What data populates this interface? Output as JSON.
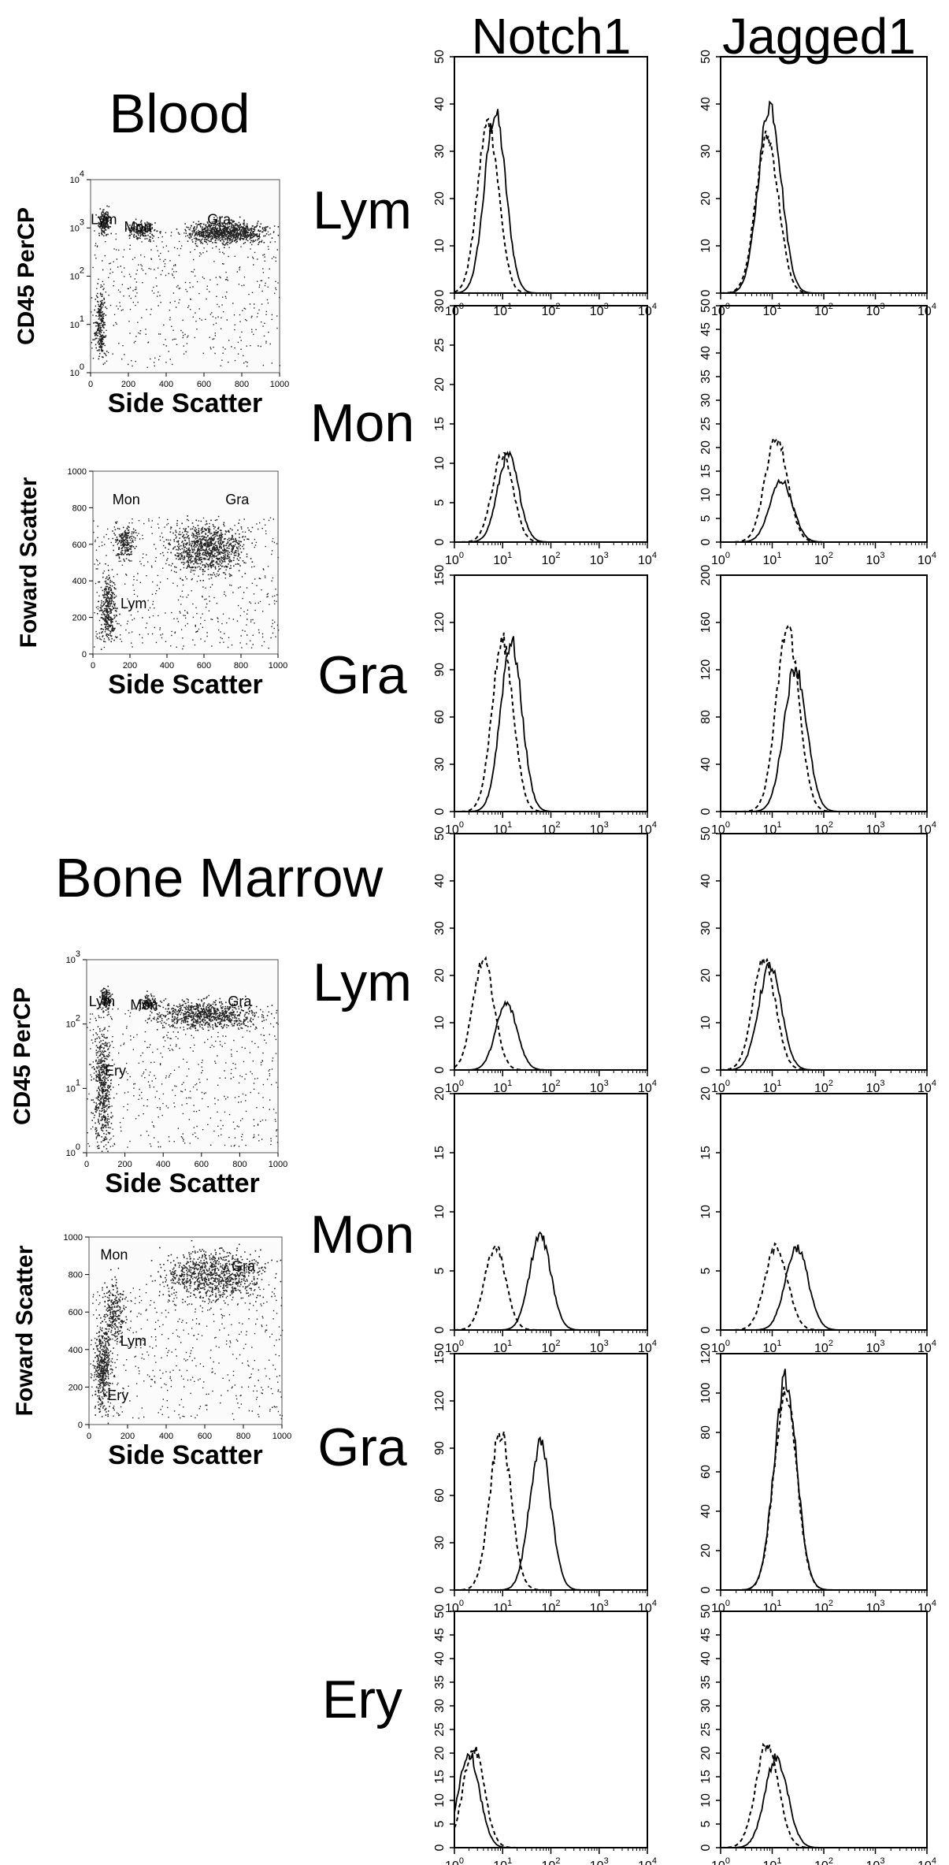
{
  "figure": {
    "column_headers": [
      "Notch1",
      "Jagged1"
    ],
    "sections": [
      {
        "id": "blood",
        "title": "Blood",
        "scatter_plots": [
          {
            "id": "blood-cd45",
            "ylabel": "CD45 PerCP",
            "xlabel": "Side Scatter",
            "y_axis": "log",
            "xticks": [
              "0",
              "200",
              "400",
              "600",
              "800",
              "1000"
            ],
            "yticks": [
              "10^0",
              "10^1",
              "10^2",
              "10^3",
              "10^4"
            ],
            "gates": [
              "Lym",
              "Mon",
              "Gra"
            ]
          },
          {
            "id": "blood-fsc",
            "ylabel": "Foward Scatter",
            "xlabel": "Side Scatter",
            "y_axis": "linear",
            "xticks": [
              "0",
              "200",
              "400",
              "600",
              "800",
              "1000"
            ],
            "yticks": [
              "0",
              "200",
              "400",
              "600",
              "800",
              "1000"
            ],
            "gates": [
              "Mon",
              "Gra",
              "Lym"
            ]
          }
        ]
      },
      {
        "id": "bone-marrow",
        "title": "Bone Marrow",
        "scatter_plots": [
          {
            "id": "bm-cd45",
            "ylabel": "CD45 PerCP",
            "xlabel": "Side Scatter",
            "y_axis": "log",
            "xticks": [
              "0",
              "200",
              "400",
              "600",
              "800",
              "1000"
            ],
            "yticks": [
              "10^0",
              "10^1",
              "10^2",
              "10^3"
            ],
            "gates": [
              "Lym",
              "Mon",
              "Gra",
              "Ery"
            ]
          },
          {
            "id": "bm-fsc",
            "ylabel": "Foward Scatter",
            "xlabel": "Side Scatter",
            "y_axis": "linear",
            "xticks": [
              "0",
              "200",
              "400",
              "600",
              "800",
              "1000"
            ],
            "yticks": [
              "0",
              "200",
              "400",
              "600",
              "800",
              "1000"
            ],
            "gates": [
              "Mon",
              "Gra",
              "Lym",
              "Ery"
            ]
          }
        ]
      }
    ],
    "histogram_x_ticks": [
      "10^0",
      "10^1",
      "10^2",
      "10^3",
      "10^4"
    ]
  },
  "chart_data": [
    {
      "type": "area",
      "section": "Blood",
      "population": "Lym",
      "marker": "Notch1",
      "x_scale": "log",
      "xlim": [
        1,
        10000
      ],
      "ylim": [
        0,
        50
      ],
      "yticks": [
        0,
        10,
        20,
        30,
        40,
        50
      ],
      "series": [
        {
          "line": "solid",
          "peak_x": 7,
          "peak_y": 38
        },
        {
          "line": "dashed",
          "peak_x": 5,
          "peak_y": 36
        }
      ]
    },
    {
      "type": "area",
      "section": "Blood",
      "population": "Lym",
      "marker": "Jagged1",
      "x_scale": "log",
      "xlim": [
        1,
        10000
      ],
      "ylim": [
        0,
        50
      ],
      "yticks": [
        0,
        10,
        20,
        30,
        40,
        50
      ],
      "series": [
        {
          "line": "solid",
          "peak_x": 9,
          "peak_y": 40
        },
        {
          "line": "dashed",
          "peak_x": 8,
          "peak_y": 33
        }
      ]
    },
    {
      "type": "area",
      "section": "Blood",
      "population": "Mon",
      "marker": "Notch1",
      "x_scale": "log",
      "xlim": [
        1,
        10000
      ],
      "ylim": [
        0,
        30
      ],
      "yticks": [
        0,
        5,
        10,
        15,
        20,
        25,
        30
      ],
      "series": [
        {
          "line": "solid",
          "peak_x": 13,
          "peak_y": 11
        },
        {
          "line": "dashed",
          "peak_x": 10,
          "peak_y": 11
        }
      ]
    },
    {
      "type": "area",
      "section": "Blood",
      "population": "Mon",
      "marker": "Jagged1",
      "x_scale": "log",
      "xlim": [
        1,
        10000
      ],
      "ylim": [
        0,
        50
      ],
      "yticks": [
        0,
        5,
        10,
        15,
        20,
        25,
        30,
        35,
        40,
        45,
        50
      ],
      "series": [
        {
          "line": "solid",
          "peak_x": 15,
          "peak_y": 13
        },
        {
          "line": "dashed",
          "peak_x": 12,
          "peak_y": 22
        }
      ]
    },
    {
      "type": "area",
      "section": "Blood",
      "population": "Gra",
      "marker": "Notch1",
      "x_scale": "log",
      "xlim": [
        1,
        10000
      ],
      "ylim": [
        0,
        150
      ],
      "yticks": [
        0,
        30,
        60,
        90,
        120,
        150
      ],
      "series": [
        {
          "line": "solid",
          "peak_x": 15,
          "peak_y": 108
        },
        {
          "line": "dashed",
          "peak_x": 10,
          "peak_y": 108
        }
      ]
    },
    {
      "type": "area",
      "section": "Blood",
      "population": "Gra",
      "marker": "Jagged1",
      "x_scale": "log",
      "xlim": [
        1,
        10000
      ],
      "ylim": [
        0,
        200
      ],
      "yticks": [
        0,
        40,
        80,
        120,
        160,
        200
      ],
      "series": [
        {
          "line": "solid",
          "peak_x": 28,
          "peak_y": 122
        },
        {
          "line": "dashed",
          "peak_x": 20,
          "peak_y": 155
        }
      ]
    },
    {
      "type": "area",
      "section": "Bone Marrow",
      "population": "Lym",
      "marker": "Notch1",
      "x_scale": "log",
      "xlim": [
        1,
        10000
      ],
      "ylim": [
        0,
        50
      ],
      "yticks": [
        0,
        10,
        20,
        30,
        40,
        50
      ],
      "series": [
        {
          "line": "solid",
          "peak_x": 12,
          "peak_y": 14
        },
        {
          "line": "dashed",
          "peak_x": 4,
          "peak_y": 23
        }
      ]
    },
    {
      "type": "area",
      "section": "Bone Marrow",
      "population": "Lym",
      "marker": "Jagged1",
      "x_scale": "log",
      "xlim": [
        1,
        10000
      ],
      "ylim": [
        0,
        50
      ],
      "yticks": [
        0,
        10,
        20,
        30,
        40,
        50
      ],
      "series": [
        {
          "line": "solid",
          "peak_x": 9,
          "peak_y": 22
        },
        {
          "line": "dashed",
          "peak_x": 7,
          "peak_y": 23
        }
      ]
    },
    {
      "type": "area",
      "section": "Bone Marrow",
      "population": "Mon",
      "marker": "Notch1",
      "x_scale": "log",
      "xlim": [
        1,
        10000
      ],
      "ylim": [
        0,
        20
      ],
      "yticks": [
        0,
        5,
        10,
        15,
        20
      ],
      "series": [
        {
          "line": "solid",
          "peak_x": 60,
          "peak_y": 8
        },
        {
          "line": "dashed",
          "peak_x": 7,
          "peak_y": 7
        }
      ]
    },
    {
      "type": "area",
      "section": "Bone Marrow",
      "population": "Mon",
      "marker": "Jagged1",
      "x_scale": "log",
      "xlim": [
        1,
        10000
      ],
      "ylim": [
        0,
        20
      ],
      "yticks": [
        0,
        5,
        10,
        15,
        20
      ],
      "series": [
        {
          "line": "solid",
          "peak_x": 30,
          "peak_y": 7
        },
        {
          "line": "dashed",
          "peak_x": 12,
          "peak_y": 7
        }
      ]
    },
    {
      "type": "area",
      "section": "Bone Marrow",
      "population": "Gra",
      "marker": "Notch1",
      "x_scale": "log",
      "xlim": [
        1,
        10000
      ],
      "ylim": [
        0,
        150
      ],
      "yticks": [
        0,
        30,
        60,
        90,
        120,
        150
      ],
      "series": [
        {
          "line": "solid",
          "peak_x": 60,
          "peak_y": 92
        },
        {
          "line": "dashed",
          "peak_x": 9,
          "peak_y": 100
        }
      ]
    },
    {
      "type": "area",
      "section": "Bone Marrow",
      "population": "Gra",
      "marker": "Jagged1",
      "x_scale": "log",
      "xlim": [
        1,
        10000
      ],
      "ylim": [
        0,
        120
      ],
      "yticks": [
        0,
        20,
        40,
        60,
        80,
        100,
        120
      ],
      "series": [
        {
          "line": "solid",
          "peak_x": 18,
          "peak_y": 106
        },
        {
          "line": "dashed",
          "peak_x": 18,
          "peak_y": 100
        }
      ]
    },
    {
      "type": "area",
      "section": "Bone Marrow",
      "population": "Ery",
      "marker": "Notch1",
      "x_scale": "log",
      "xlim": [
        1,
        10000
      ],
      "ylim": [
        0,
        50
      ],
      "yticks": [
        0,
        5,
        10,
        15,
        20,
        25,
        30,
        35,
        40,
        45,
        50
      ],
      "series": [
        {
          "line": "solid",
          "peak_x": 2,
          "peak_y": 20
        },
        {
          "line": "dashed",
          "peak_x": 2.5,
          "peak_y": 21
        }
      ]
    },
    {
      "type": "area",
      "section": "Bone Marrow",
      "population": "Ery",
      "marker": "Jagged1",
      "x_scale": "log",
      "xlim": [
        1,
        10000
      ],
      "ylim": [
        0,
        50
      ],
      "yticks": [
        0,
        5,
        10,
        15,
        20,
        25,
        30,
        35,
        40,
        45,
        50
      ],
      "series": [
        {
          "line": "solid",
          "peak_x": 12,
          "peak_y": 19
        },
        {
          "line": "dashed",
          "peak_x": 8,
          "peak_y": 22
        }
      ]
    }
  ]
}
